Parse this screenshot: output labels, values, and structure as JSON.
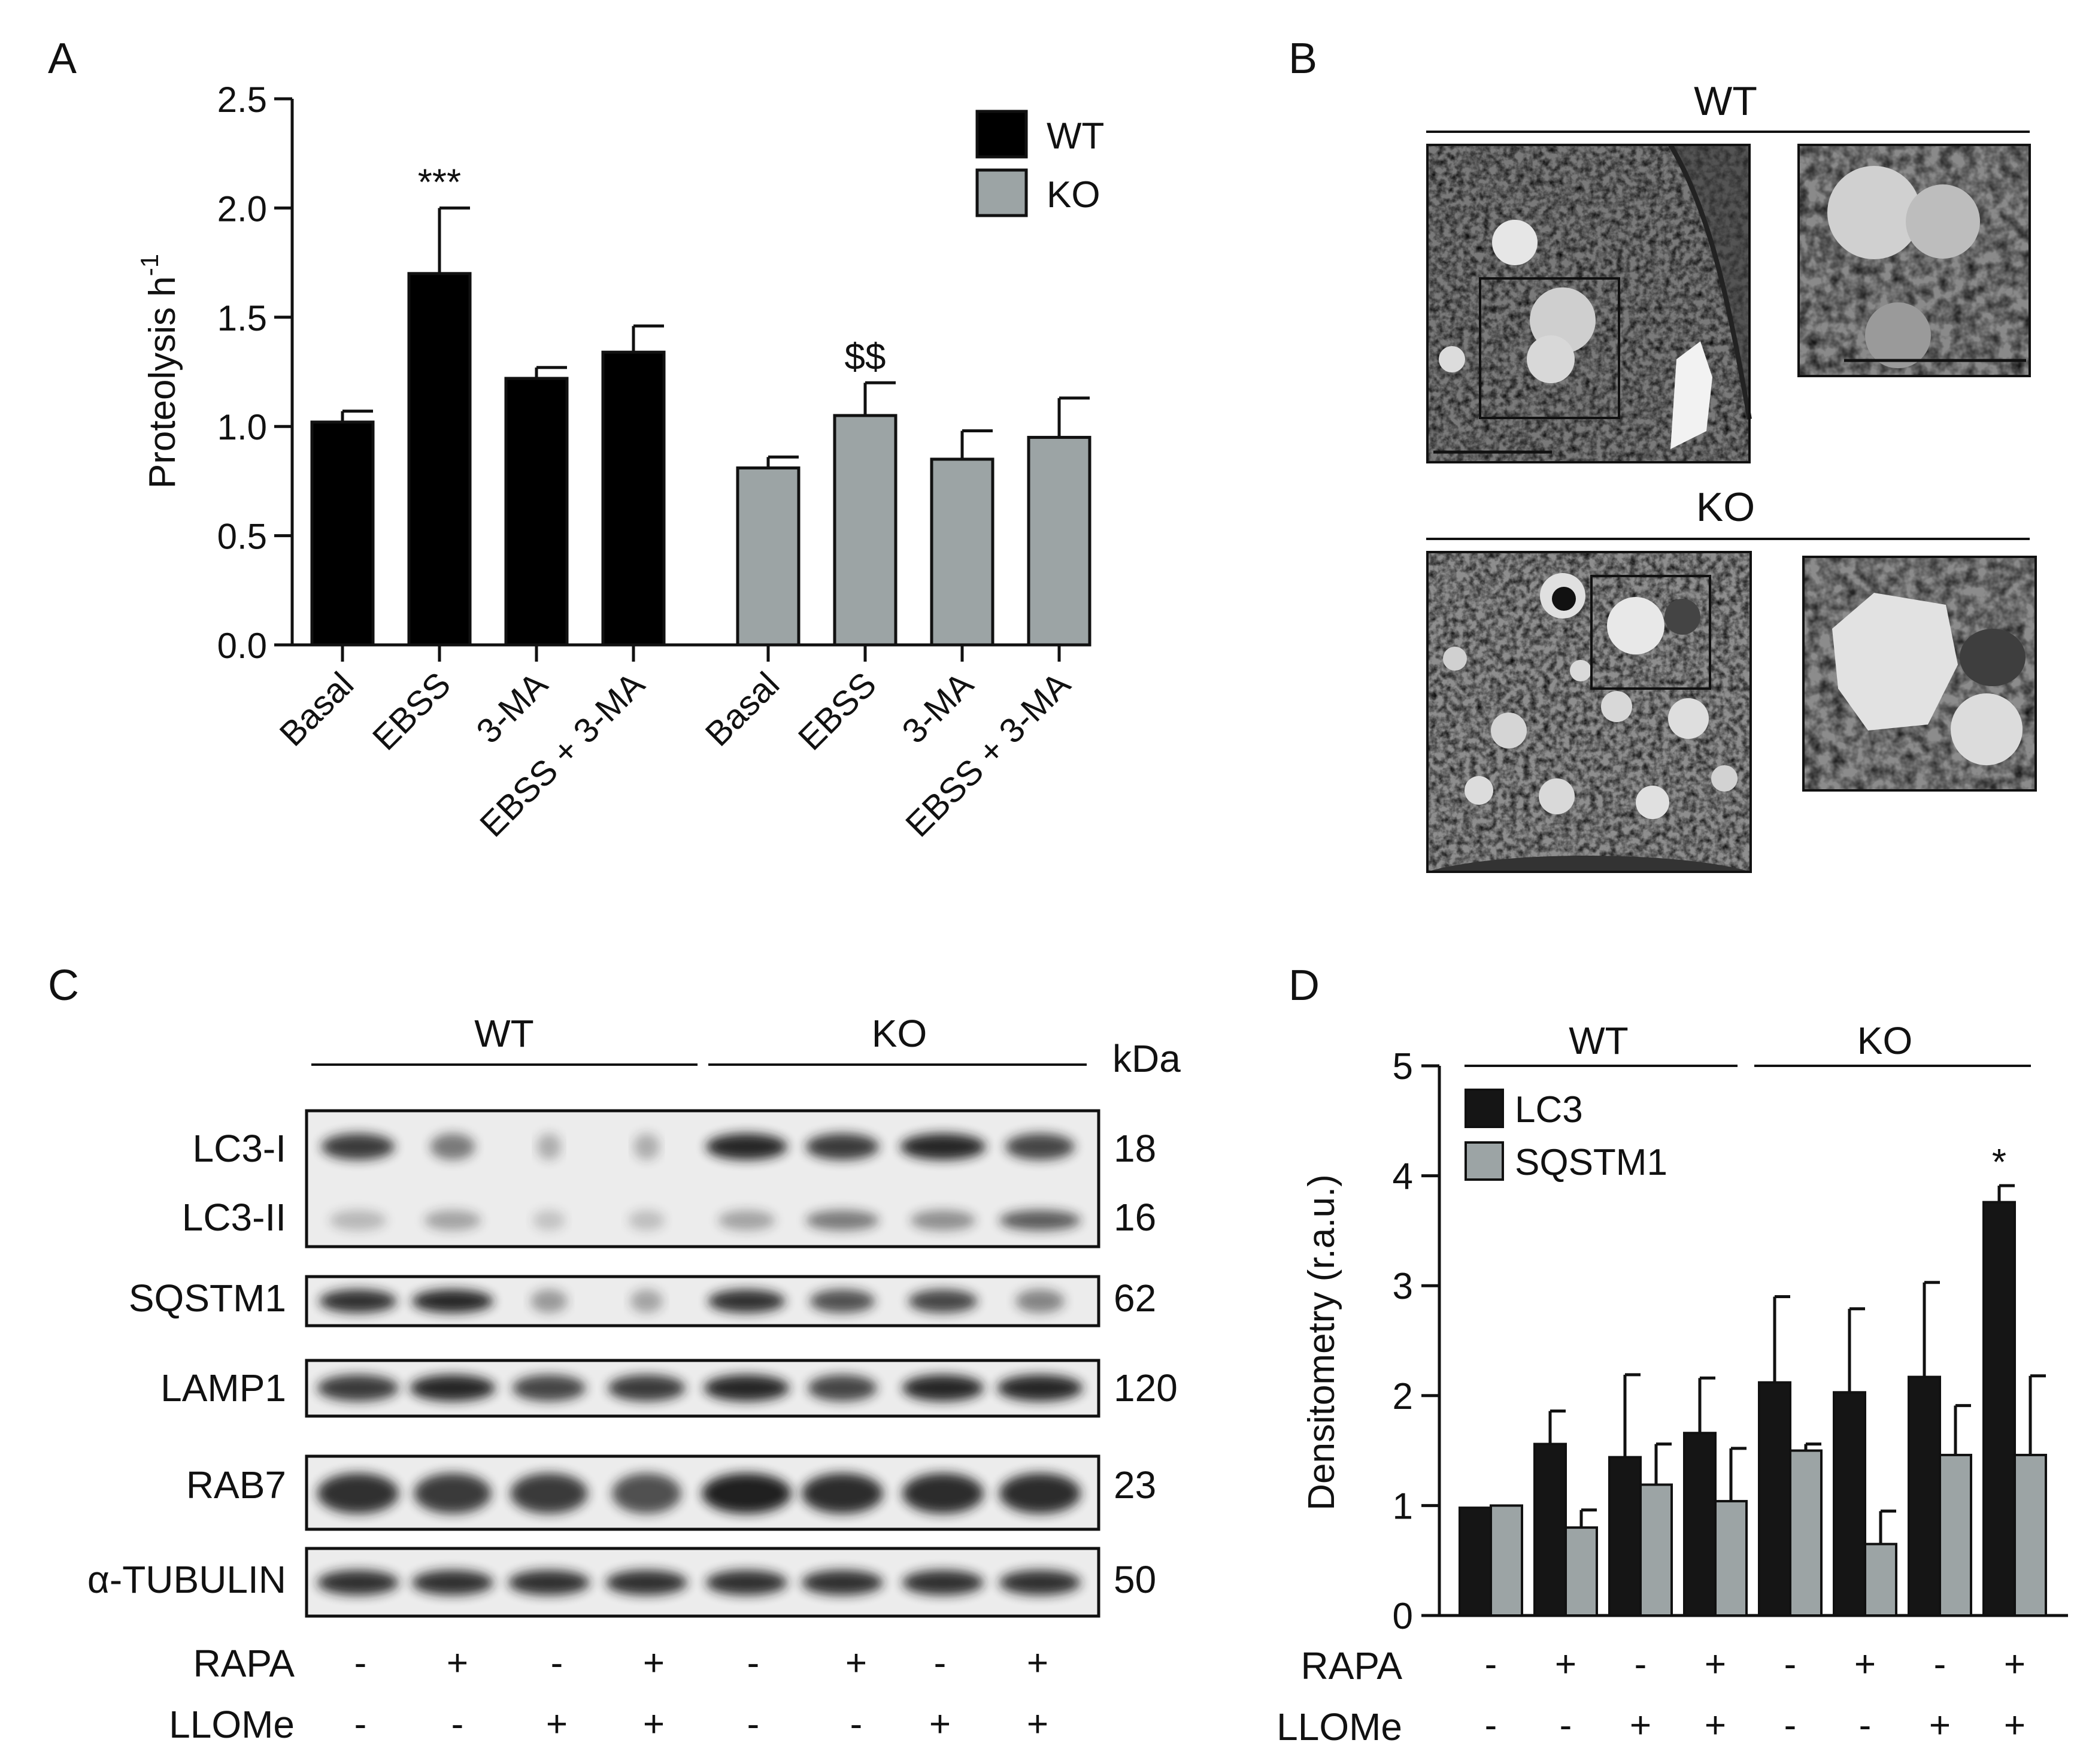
{
  "panel_letters": [
    "A",
    "B",
    "C",
    "D"
  ],
  "groups": {
    "wt": "WT",
    "ko": "KO"
  },
  "panel_b": {
    "wt_label": "WT",
    "ko_label": "KO"
  },
  "blot": {
    "kda_header": "kDa",
    "bands": [
      {
        "label": "LC3-I",
        "kda": "18"
      },
      {
        "label": "LC3-II",
        "kda": "16"
      },
      {
        "label": "SQSTM1",
        "kda": "62"
      },
      {
        "label": "LAMP1",
        "kda": "120"
      },
      {
        "label": "RAB7",
        "kda": "23"
      },
      {
        "label": "α-TUBULIN",
        "kda": "50"
      }
    ],
    "treatments": [
      {
        "label": "RAPA",
        "signs": [
          "-",
          "+",
          "-",
          "+",
          "-",
          "+",
          "-",
          "+"
        ]
      },
      {
        "label": "LLOMe",
        "signs": [
          "-",
          "-",
          "+",
          "+",
          "-",
          "-",
          "+",
          "+"
        ]
      }
    ],
    "colors": {
      "membrane": "#ececec",
      "band": "#1a1a1a"
    }
  },
  "chart_data": [
    {
      "panel": "A",
      "type": "bar",
      "ylabel": "Proteolysis h",
      "ylabel_sup": "-1",
      "ylim": [
        0,
        2.5
      ],
      "yticks": [
        "0.0",
        "0.5",
        "1.0",
        "1.5",
        "2.0",
        "2.5"
      ],
      "categories": [
        "Basal",
        "EBSS",
        "3-MA",
        "EBSS + 3-MA"
      ],
      "series": [
        {
          "name": "WT",
          "color": "#000000",
          "values": [
            1.02,
            1.7,
            1.22,
            1.34
          ],
          "errors": [
            0.05,
            0.3,
            0.05,
            0.12
          ],
          "annotations": [
            "",
            "***",
            "",
            ""
          ]
        },
        {
          "name": "KO",
          "color": "#9ca4a5",
          "values": [
            0.81,
            1.05,
            0.85,
            0.95
          ],
          "errors": [
            0.05,
            0.15,
            0.13,
            0.18
          ],
          "annotations": [
            "",
            "$$",
            "",
            ""
          ]
        }
      ],
      "legend_position": "top-right"
    },
    {
      "panel": "D",
      "type": "bar",
      "ylabel": "Densitometry (r.a.u.)",
      "ylim": [
        0,
        5
      ],
      "yticks": [
        "0",
        "1",
        "2",
        "3",
        "4",
        "5"
      ],
      "groups": [
        "WT",
        "KO"
      ],
      "conditions": 8,
      "series": [
        {
          "name": "LC3",
          "color": "#151515",
          "values": [
            0.98,
            1.56,
            1.44,
            1.66,
            2.12,
            2.03,
            2.17,
            3.76
          ],
          "errors": [
            0,
            0.3,
            0.75,
            0.5,
            0.78,
            0.76,
            0.86,
            0.15
          ]
        },
        {
          "name": "SQSTM1",
          "color": "#9ca4a5",
          "values": [
            1.0,
            0.8,
            1.19,
            1.04,
            1.5,
            0.65,
            1.46,
            1.46
          ],
          "errors": [
            0,
            0.16,
            0.37,
            0.48,
            0.06,
            0.3,
            0.45,
            0.72
          ]
        }
      ],
      "annotations": [
        {
          "condition": 8,
          "text": "*"
        }
      ],
      "legend_position": "top-left"
    }
  ]
}
